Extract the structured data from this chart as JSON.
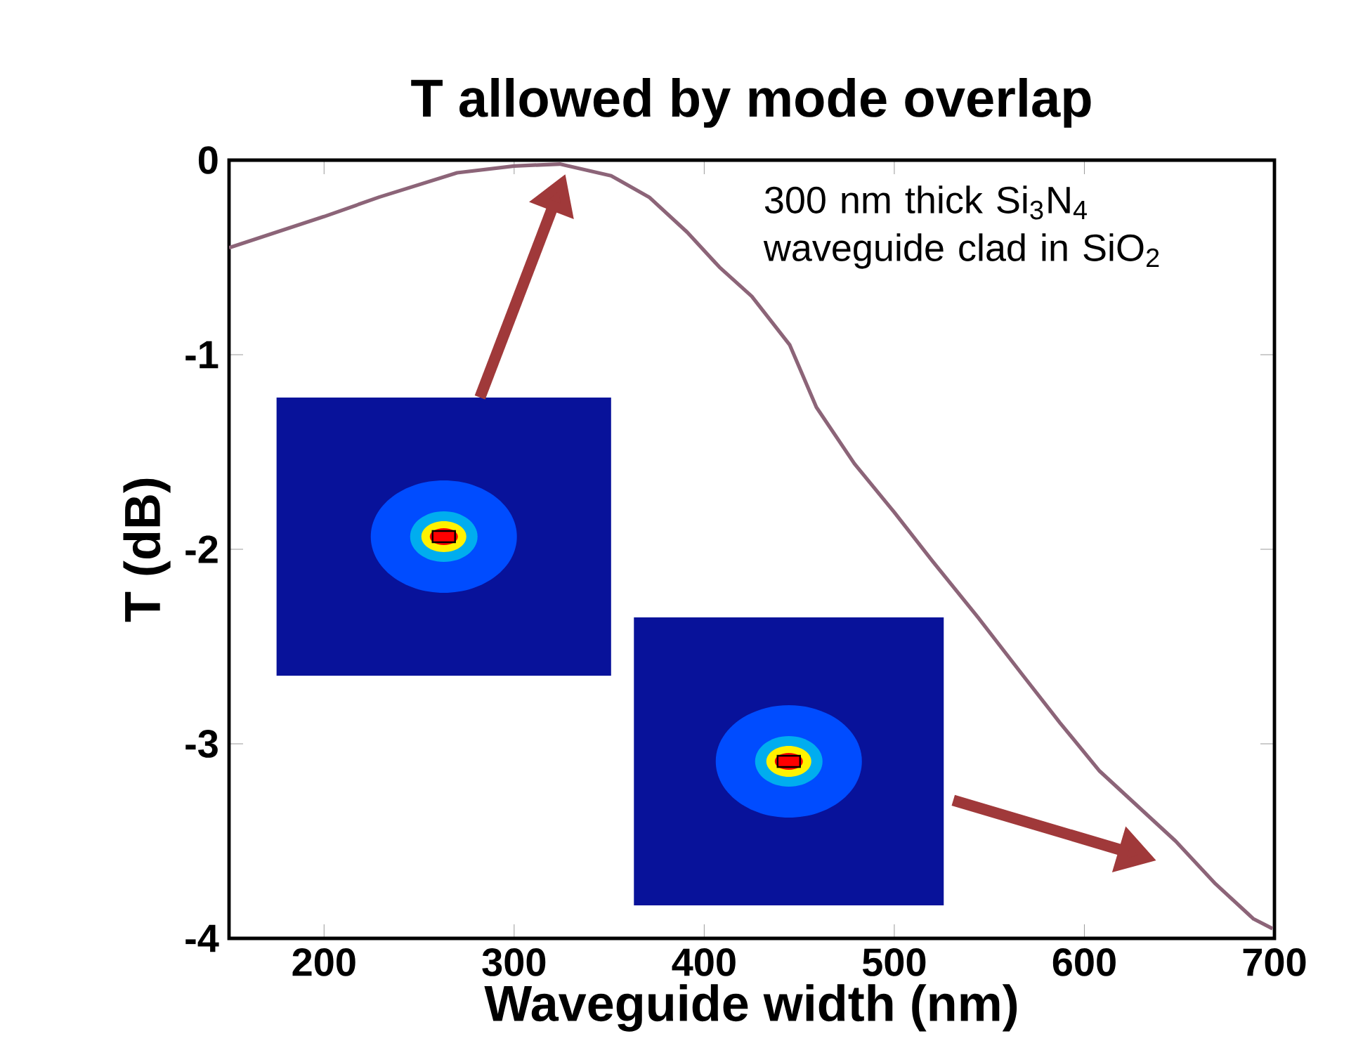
{
  "chart_data": {
    "type": "line",
    "title": "T allowed by mode overlap",
    "xlabel": "Waveguide width (nm)",
    "ylabel": "T (dB)",
    "x": [
      150,
      175,
      200,
      229,
      270,
      300,
      324,
      351,
      371,
      391,
      408,
      425,
      445,
      459,
      479,
      500,
      520,
      544,
      567,
      587,
      608,
      628,
      648,
      669,
      689,
      699
    ],
    "series": [
      {
        "color": "#8c6478",
        "values": [
          -0.45,
          -0.37,
          -0.29,
          -0.19,
          -0.065,
          -0.03,
          -0.02,
          -0.08,
          -0.19,
          -0.37,
          -0.55,
          -0.7,
          -0.95,
          -1.27,
          -1.56,
          -1.81,
          -2.06,
          -2.35,
          -2.64,
          -2.89,
          -3.14,
          -3.32,
          -3.5,
          -3.72,
          -3.9,
          -3.95
        ]
      }
    ],
    "xlim": [
      150,
      700
    ],
    "ylim": [
      -4,
      0
    ],
    "xticks": [
      200,
      300,
      400,
      500,
      600,
      700
    ],
    "yticks": [
      0,
      -1,
      -2,
      -3,
      -4
    ],
    "annotations": [
      "300 nm thick Si$_{3}$N$_{4}$ waveguide clad in SiO$_{2}$"
    ],
    "grid": false
  }
}
